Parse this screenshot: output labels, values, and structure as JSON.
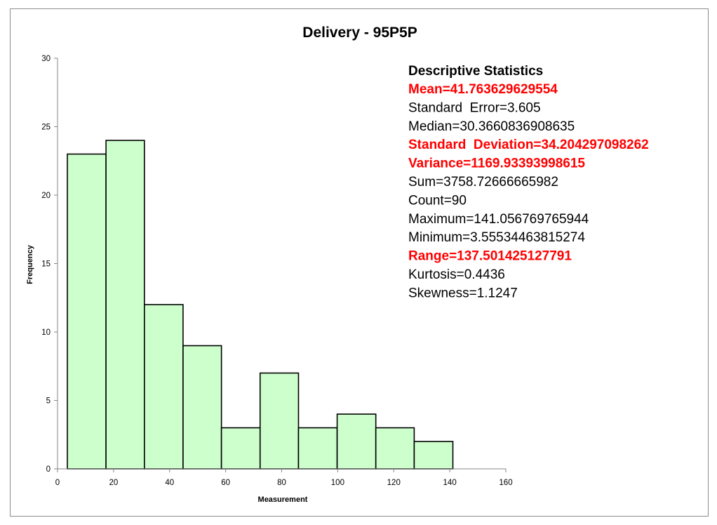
{
  "chart_data": {
    "type": "bar",
    "title": "Delivery - 95P5P",
    "xlabel": "Measurement",
    "ylabel": "Frequency",
    "xlim": [
      0,
      160
    ],
    "ylim": [
      0,
      30
    ],
    "x_ticks": [
      "0",
      "20",
      "40",
      "60",
      "80",
      "100",
      "120",
      "140",
      "160"
    ],
    "y_ticks": [
      "0",
      "5",
      "10",
      "15",
      "20",
      "25",
      "30"
    ],
    "bins": [
      {
        "start": 3.5,
        "end": 17.3,
        "count": 23
      },
      {
        "start": 17.3,
        "end": 31.0,
        "count": 24
      },
      {
        "start": 31.0,
        "end": 44.8,
        "count": 12
      },
      {
        "start": 44.8,
        "end": 58.5,
        "count": 9
      },
      {
        "start": 58.5,
        "end": 72.3,
        "count": 3
      },
      {
        "start": 72.3,
        "end": 86.0,
        "count": 7
      },
      {
        "start": 86.0,
        "end": 99.8,
        "count": 3
      },
      {
        "start": 99.8,
        "end": 113.6,
        "count": 4
      },
      {
        "start": 113.6,
        "end": 127.3,
        "count": 3
      },
      {
        "start": 127.3,
        "end": 141.1,
        "count": 2
      }
    ],
    "bar_color": "#ccffcc",
    "bar_edge_color": "#000000",
    "grid": false,
    "annotation": {
      "heading": "Descriptive Statistics",
      "lines": [
        {
          "text": "Mean=41.763629629554",
          "highlight": true
        },
        {
          "text": "Standard  Error=3.605",
          "highlight": false
        },
        {
          "text": "Median=30.3660836908635",
          "highlight": false
        },
        {
          "text": "Standard  Deviation=34.204297098262",
          "highlight": true
        },
        {
          "text": "Variance=1169.93393998615",
          "highlight": true
        },
        {
          "text": "Sum=3758.72666665982",
          "highlight": false
        },
        {
          "text": "Count=90",
          "highlight": false
        },
        {
          "text": "Maximum=141.056769765944",
          "highlight": false
        },
        {
          "text": "Minimum=3.55534463815274",
          "highlight": false
        },
        {
          "text": "Range=137.501425127791",
          "highlight": true
        },
        {
          "text": "Kurtosis=0.4436",
          "highlight": false
        },
        {
          "text": "Skewness=1.1247",
          "highlight": false
        }
      ],
      "highlight_color": "#ff0000",
      "normal_color": "#000000"
    }
  }
}
